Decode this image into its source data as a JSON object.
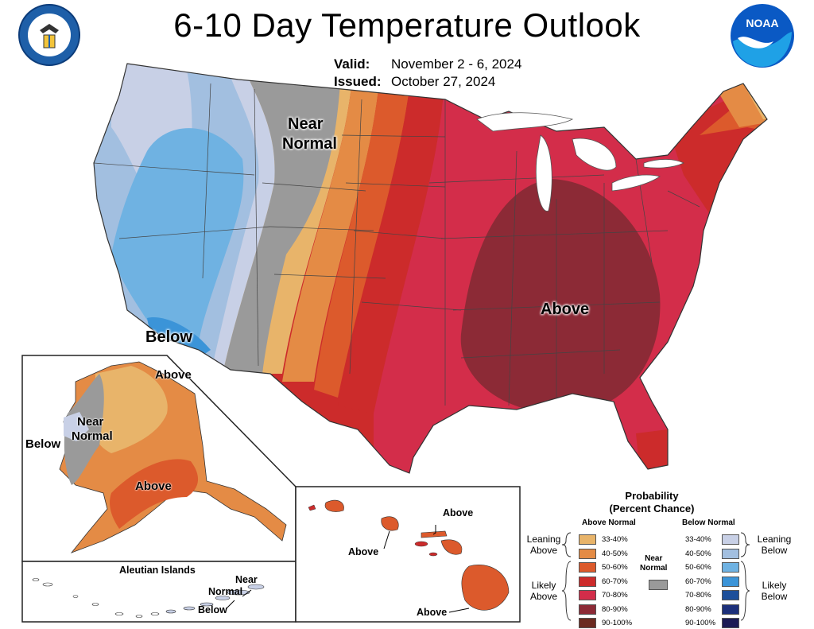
{
  "header": {
    "title": "6-10 Day Temperature Outlook",
    "valid_label": "Valid:",
    "valid_value": "November 2 - 6, 2024",
    "issued_label": "Issued:",
    "issued_value": "October 27, 2024",
    "left_logo": "seal-icon",
    "right_logo": "noaa-logo-icon",
    "noaa_text": "NOAA"
  },
  "map_labels": {
    "conus_near_normal_1": "Near",
    "conus_near_normal_2": "Normal",
    "conus_above": "Above",
    "conus_below": "Below",
    "alaska_above_north": "Above",
    "alaska_above_south": "Above",
    "alaska_near_1": "Near",
    "alaska_near_2": "Normal",
    "alaska_below": "Below",
    "aleutian_title": "Aleutian Islands",
    "aleutian_near_1": "Near",
    "aleutian_near_2": "Normal",
    "aleutian_below": "Below",
    "hawaii_above_1": "Above",
    "hawaii_above_2": "Above",
    "hawaii_above_3": "Above"
  },
  "legend": {
    "title_1": "Probability",
    "title_2": "(Percent Chance)",
    "above_head": "Above Normal",
    "below_head": "Below Normal",
    "near_1": "Near",
    "near_2": "Normal",
    "leaning_above_1": "Leaning",
    "leaning_above_2": "Above",
    "likely_above_1": "Likely",
    "likely_above_2": "Above",
    "leaning_below_1": "Leaning",
    "leaning_below_2": "Below",
    "likely_below_1": "Likely",
    "likely_below_2": "Below",
    "above_items": [
      {
        "range": "33-40%",
        "color": "#e8b46a"
      },
      {
        "range": "40-50%",
        "color": "#e48b45"
      },
      {
        "range": "50-60%",
        "color": "#dc5a2c"
      },
      {
        "range": "60-70%",
        "color": "#cc2b2b"
      },
      {
        "range": "70-80%",
        "color": "#d32d4a"
      },
      {
        "range": "80-90%",
        "color": "#8c2a36"
      },
      {
        "range": "90-100%",
        "color": "#6b2a20"
      }
    ],
    "below_items": [
      {
        "range": "33-40%",
        "color": "#c8d0e6"
      },
      {
        "range": "40-50%",
        "color": "#a2bfe0"
      },
      {
        "range": "50-60%",
        "color": "#6fb2e2"
      },
      {
        "range": "60-70%",
        "color": "#3b94d8"
      },
      {
        "range": "70-80%",
        "color": "#1d4f9a"
      },
      {
        "range": "80-90%",
        "color": "#1c2f7a"
      },
      {
        "range": "90-100%",
        "color": "#1b1b55"
      }
    ],
    "near_color": "#9a9a9a"
  }
}
